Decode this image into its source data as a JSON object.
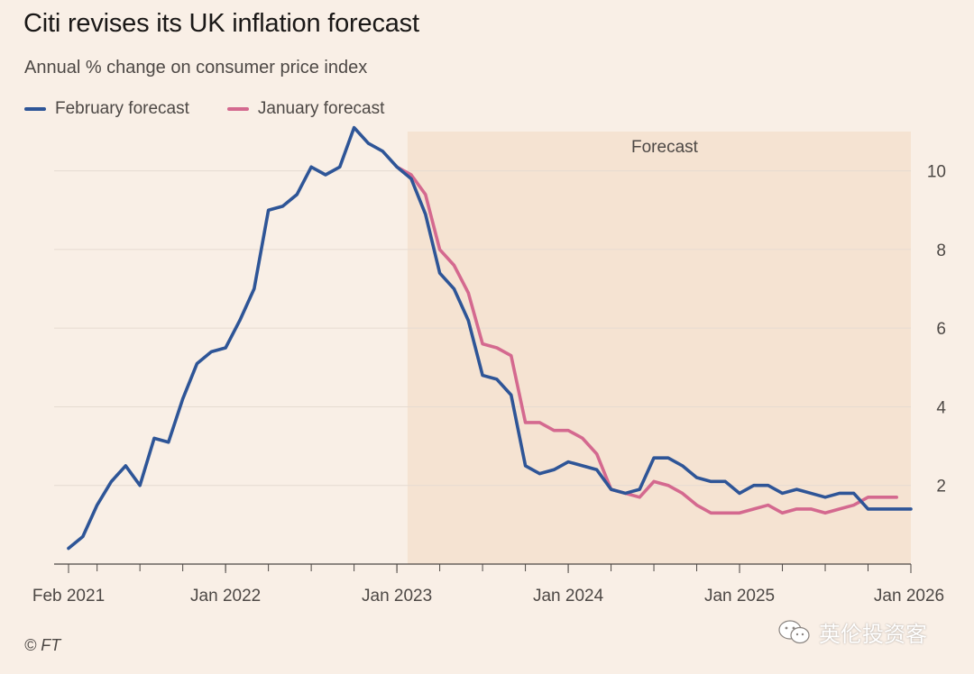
{
  "header": {
    "title": "Citi revises its UK inflation forecast",
    "subtitle": "Annual % change on consumer price index"
  },
  "legend": {
    "february": "February forecast",
    "january": "January forecast"
  },
  "footer": {
    "source": "© FT"
  },
  "watermark": {
    "text": "英伦投资客",
    "icon": "wechat-icon"
  },
  "colors": {
    "background": "#f9efe6",
    "forecast_shade": "#f5e3d2",
    "february": "#2e5597",
    "january": "#d4698f",
    "grid": "#e6dbd1",
    "axis": "#4d4845"
  },
  "chart_data": {
    "type": "line",
    "title": "Citi revises its UK inflation forecast",
    "subtitle": "Annual % change on consumer price index",
    "xlabel": "",
    "ylabel": "",
    "x_start": "Feb 2021",
    "x_end": "Jan 2026",
    "ylim": [
      0,
      11
    ],
    "y_ticks": [
      2,
      4,
      6,
      8,
      10
    ],
    "x_ticks": [
      {
        "month_index": 0,
        "label": "Feb 2021"
      },
      {
        "month_index": 11,
        "label": "Jan 2022"
      },
      {
        "month_index": 23,
        "label": "Jan 2023"
      },
      {
        "month_index": 35,
        "label": "Jan 2024"
      },
      {
        "month_index": 47,
        "label": "Jan 2025"
      },
      {
        "month_index": 59,
        "label": "Jan 2026"
      }
    ],
    "forecast_region": {
      "start_month_index": 24,
      "end_month_index": 59,
      "label": "Forecast"
    },
    "series": [
      {
        "name": "February forecast",
        "start_month_index": 0,
        "values": [
          0.4,
          0.7,
          1.5,
          2.1,
          2.5,
          2.0,
          3.2,
          3.1,
          4.2,
          5.1,
          5.4,
          5.5,
          6.2,
          7.0,
          9.0,
          9.1,
          9.4,
          10.1,
          9.9,
          10.1,
          11.1,
          10.7,
          10.5,
          10.1,
          9.8,
          8.9,
          7.4,
          7.0,
          6.2,
          4.8,
          4.7,
          4.3,
          2.5,
          2.3,
          2.4,
          2.6,
          2.5,
          2.4,
          1.9,
          1.8,
          1.9,
          2.7,
          2.7,
          2.5,
          2.2,
          2.1,
          2.1,
          1.8,
          2.0,
          2.0,
          1.8,
          1.9,
          1.8,
          1.7,
          1.8,
          1.8,
          1.4,
          1.4,
          1.4,
          1.4
        ]
      },
      {
        "name": "January forecast",
        "start_month_index": 23,
        "values": [
          10.1,
          9.9,
          9.4,
          8.0,
          7.6,
          6.9,
          5.6,
          5.5,
          5.3,
          3.6,
          3.6,
          3.4,
          3.4,
          3.2,
          2.8,
          1.9,
          1.8,
          1.7,
          2.1,
          2.0,
          1.8,
          1.5,
          1.3,
          1.3,
          1.3,
          1.4,
          1.5,
          1.3,
          1.4,
          1.4,
          1.3,
          1.4,
          1.5,
          1.7,
          1.7,
          1.7
        ]
      }
    ]
  }
}
